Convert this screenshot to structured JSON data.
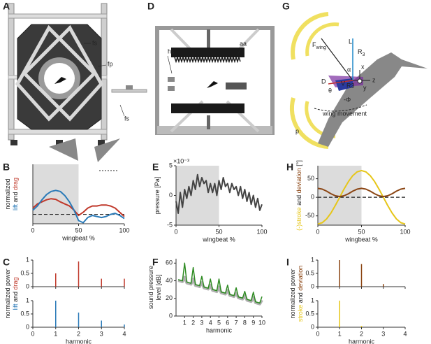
{
  "diagrams": [
    {
      "letter": "A",
      "labels": [
        "fs",
        "fp",
        "fs"
      ]
    },
    {
      "letter": "D",
      "labels": [
        "hs",
        "aa"
      ]
    },
    {
      "letter": "G",
      "labels": [
        "F",
        "wing",
        "L",
        "R",
        "3",
        "α",
        "D",
        "θ",
        "-Φ",
        "x",
        "y",
        "z",
        "V",
        "R3",
        "wing movement",
        "p"
      ]
    }
  ],
  "chart_data": [
    {
      "type": "line",
      "letter": "B",
      "xlabel": "wingbeat %",
      "ylabel": [
        [
          {
            "text": "normalized"
          }
        ],
        [
          {
            "text": "lift",
            "color": "#2a7ab8"
          },
          {
            "text": " and "
          },
          {
            "text": "drag",
            "color": "#c0392b"
          }
        ]
      ],
      "xlim": [
        0,
        100
      ],
      "xticks": [
        0,
        50,
        100
      ],
      "ylim": [
        -0.45,
        2.4
      ],
      "shade_x": [
        0,
        50
      ],
      "zero_line": true,
      "x": [
        0,
        5,
        10,
        15,
        20,
        25,
        30,
        35,
        40,
        45,
        50,
        55,
        60,
        65,
        70,
        75,
        80,
        85,
        90,
        95,
        100
      ],
      "series": [
        {
          "color": "#c0392b",
          "values": [
            0.3,
            0.5,
            0.6,
            0.7,
            0.75,
            0.72,
            0.6,
            0.5,
            0.4,
            0.2,
            -0.05,
            0.1,
            0.3,
            0.4,
            0.4,
            0.45,
            0.45,
            0.4,
            0.3,
            0.1,
            -0.1
          ]
        },
        {
          "color": "#2a7ab8",
          "values": [
            0.2,
            0.4,
            0.7,
            0.95,
            1.1,
            1.15,
            1.1,
            0.9,
            0.6,
            0.2,
            -0.3,
            -0.4,
            -0.15,
            -0.05,
            -0.1,
            -0.15,
            -0.1,
            0,
            0.05,
            -0.05,
            -0.2
          ]
        }
      ]
    },
    {
      "type": "stem",
      "letter": "C",
      "xlabel": "harmonic",
      "ylabel": [
        [
          {
            "text": "normalized power"
          }
        ],
        [
          {
            "text": "lift",
            "color": "#2a7ab8"
          },
          {
            "text": " and "
          },
          {
            "text": "drag",
            "color": "#c0392b"
          }
        ]
      ],
      "xlim": [
        0,
        4
      ],
      "xticks": [
        0,
        1,
        2,
        3,
        4
      ],
      "subplots": [
        {
          "color": "#c0392b",
          "ylim": [
            0,
            1
          ],
          "yticks": [
            0,
            0.5,
            1
          ],
          "x": [
            1,
            2,
            3,
            4
          ],
          "values": [
            0.5,
            0.95,
            0.3,
            0.3
          ]
        },
        {
          "color": "#2a7ab8",
          "ylim": [
            0,
            1
          ],
          "yticks": [
            0,
            0.5,
            1
          ],
          "x": [
            1,
            2,
            3,
            4
          ],
          "values": [
            1,
            0.55,
            0.25,
            0.1
          ]
        }
      ]
    },
    {
      "type": "line",
      "letter": "E",
      "xlabel": "wingbeat %",
      "ylabel": [
        [
          {
            "text": "pressure [Pa]"
          }
        ]
      ],
      "multiplier": "×10⁻³",
      "xlim": [
        0,
        100
      ],
      "xticks": [
        0,
        50,
        100
      ],
      "ylim": [
        -5,
        5
      ],
      "yticks": [
        -5,
        0,
        5
      ],
      "shade_x": [
        0,
        50
      ],
      "x": [
        0,
        2.5,
        5,
        7.5,
        10,
        12.5,
        15,
        17.5,
        20,
        22.5,
        25,
        27.5,
        30,
        32.5,
        35,
        37.5,
        40,
        42.5,
        45,
        47.5,
        50,
        52.5,
        55,
        57.5,
        60,
        62.5,
        65,
        67.5,
        70,
        72.5,
        75,
        77.5,
        80,
        82.5,
        85,
        87.5,
        90,
        92.5,
        95,
        97.5,
        100
      ],
      "series": [
        {
          "color": "#444444",
          "values": [
            -1,
            -3,
            0.5,
            -2,
            1,
            -0.5,
            1.5,
            0,
            2.5,
            1,
            3.5,
            1.5,
            3,
            2,
            2.5,
            0.5,
            2,
            0.5,
            2,
            0,
            2.5,
            1,
            3,
            1.5,
            2,
            0.5,
            2,
            1,
            1.5,
            0,
            1.5,
            -0.5,
            1,
            -1,
            0.5,
            -1.5,
            0,
            -2,
            -0.5,
            -2.5,
            -1.5
          ]
        }
      ]
    },
    {
      "type": "line",
      "letter": "F",
      "xlabel": "harmonic",
      "ylabel": [
        [
          {
            "text": "sound pressure"
          }
        ],
        [
          {
            "text": "level [dB]"
          }
        ]
      ],
      "xlim": [
        0,
        10
      ],
      "xticks": [
        1,
        2,
        3,
        4,
        5,
        6,
        7,
        8,
        9,
        10
      ],
      "ylim": [
        0,
        65
      ],
      "yticks": [
        0,
        20,
        40,
        60
      ],
      "x": [
        0.25,
        0.5,
        0.75,
        1,
        1.25,
        1.5,
        1.75,
        2,
        2.25,
        2.5,
        2.75,
        3,
        3.25,
        3.5,
        3.75,
        4,
        4.25,
        4.5,
        4.75,
        5,
        5.25,
        5.5,
        5.75,
        6,
        6.25,
        6.5,
        6.75,
        7,
        7.25,
        7.5,
        7.75,
        8,
        8.25,
        8.5,
        8.75,
        9,
        9.25,
        9.5,
        9.75,
        10
      ],
      "series": [
        {
          "color": "#b0b0b0",
          "width": 4,
          "values": [
            40.3,
            39.6,
            38.9,
            44,
            37.5,
            36.8,
            36.1,
            42,
            34.7,
            34,
            33.3,
            38,
            31.9,
            31.2,
            30.5,
            35,
            29.1,
            28.4,
            27.7,
            33,
            26.3,
            25.6,
            24.9,
            29,
            23.5,
            22.8,
            22.1,
            26,
            20.7,
            20,
            19.3,
            23,
            17.9,
            17.2,
            16.5,
            21,
            15.1,
            14.4,
            13.7,
            18
          ]
        },
        {
          "color": "#2e8b22",
          "width": 1.5,
          "values": [
            41.3,
            40.6,
            39.9,
            60,
            38.5,
            37.8,
            37.1,
            55,
            35.7,
            35,
            34.3,
            45,
            32.9,
            32.2,
            31.5,
            42,
            30.1,
            29.4,
            28.7,
            42,
            27.3,
            26.6,
            25.9,
            35,
            24.5,
            23.8,
            23.1,
            32,
            21.7,
            21,
            20.3,
            28,
            18.9,
            18.2,
            17.5,
            27,
            16.1,
            15.4,
            14.7,
            22
          ]
        }
      ]
    },
    {
      "type": "line",
      "letter": "H",
      "xlabel": "wingbeat %",
      "ylabel": [
        [
          {
            "text": "(-)stroke",
            "color": "#e6c619"
          },
          {
            "text": " and "
          },
          {
            "text": "deviation",
            "color": "#8b4513"
          },
          {
            "text": " [°]"
          }
        ]
      ],
      "xlim": [
        0,
        100
      ],
      "xticks": [
        0,
        50,
        100
      ],
      "ylim": [
        -75,
        85
      ],
      "yticks": [
        -50,
        0,
        50
      ],
      "shade_x": [
        0,
        50
      ],
      "zero_line": true,
      "x": [
        0,
        5,
        10,
        15,
        20,
        25,
        30,
        35,
        40,
        45,
        50,
        55,
        60,
        65,
        70,
        75,
        80,
        85,
        90,
        95,
        100
      ],
      "series": [
        {
          "color": "#e6c619",
          "values": [
            -72,
            -68.5,
            -58.2,
            -42.3,
            -22.2,
            0,
            22.2,
            42.3,
            58.2,
            68.5,
            72,
            68.5,
            58.2,
            42.3,
            22.2,
            0,
            -22.2,
            -42.3,
            -58.2,
            -68.5,
            -72
          ]
        },
        {
          "color": "#8b4513",
          "values": [
            24,
            21.9,
            16.4,
            9.6,
            4.1,
            2,
            4.1,
            9.6,
            16.4,
            21.9,
            24,
            21.9,
            16.4,
            9.6,
            4.1,
            2,
            4.1,
            9.6,
            16.4,
            21.9,
            24
          ]
        }
      ]
    },
    {
      "type": "stem",
      "letter": "I",
      "xlabel": "harmonic",
      "ylabel": [
        [
          {
            "text": "normalized power"
          }
        ],
        [
          {
            "text": "stroke",
            "color": "#e6c619"
          },
          {
            "text": " and "
          },
          {
            "text": "deviation",
            "color": "#8b4513"
          }
        ]
      ],
      "xlim": [
        0,
        4
      ],
      "xticks": [
        0,
        1,
        2,
        3,
        4
      ],
      "subplots": [
        {
          "color": "#8b4513",
          "ylim": [
            0,
            1
          ],
          "yticks": [
            0,
            0.5,
            1
          ],
          "x": [
            1,
            2,
            3
          ],
          "values": [
            1,
            0.85,
            0.1
          ]
        },
        {
          "color": "#e6c619",
          "ylim": [
            0,
            1
          ],
          "yticks": [
            0,
            0.5,
            1
          ],
          "x": [
            1,
            2
          ],
          "values": [
            1,
            0.05
          ]
        }
      ]
    }
  ]
}
